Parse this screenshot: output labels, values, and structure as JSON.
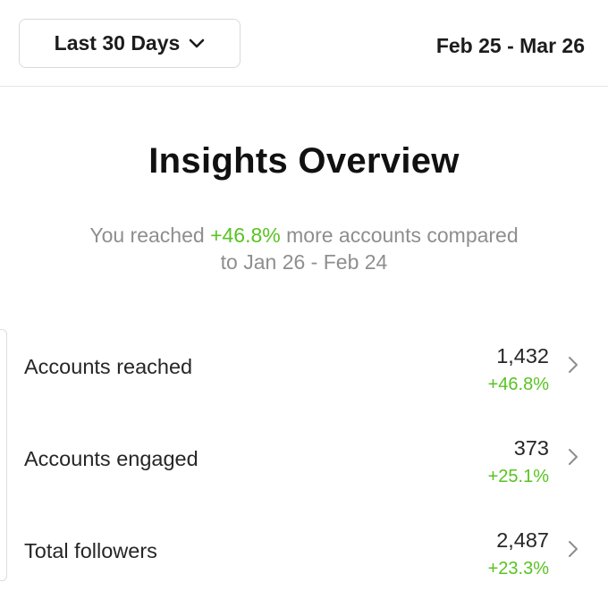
{
  "header": {
    "range_label": "Last 30 Days",
    "date_range": "Feb 25 - Mar 26"
  },
  "overview": {
    "title": "Insights Overview",
    "subtitle_prefix": "You reached ",
    "subtitle_change": "+46.8%",
    "subtitle_suffix": " more accounts compared",
    "subtitle_line2": "to Jan 26 - Feb 24"
  },
  "metrics": [
    {
      "label": "Accounts reached",
      "value": "1,432",
      "change": "+46.8%"
    },
    {
      "label": "Accounts engaged",
      "value": "373",
      "change": "+25.1%"
    },
    {
      "label": "Total followers",
      "value": "2,487",
      "change": "+23.3%"
    }
  ],
  "colors": {
    "positive": "#58c322",
    "muted": "#8e8e8e",
    "text": "#262626"
  },
  "icons": {
    "range_chevron": "chevron-down-icon",
    "row_arrow": "chevron-right-icon"
  }
}
